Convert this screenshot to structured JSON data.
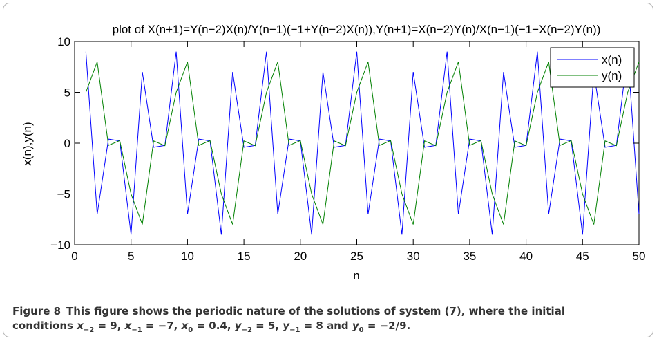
{
  "figure": {
    "label": "Figure 8",
    "caption_part1": "This figure shows the periodic nature of the solutions of system (7), where the initial",
    "caption_part2": "conditions",
    "initial_conditions": [
      {
        "var": "x",
        "sub": "−2",
        "value": "= 9,"
      },
      {
        "var": "x",
        "sub": "−1",
        "value": "= −7,"
      },
      {
        "var": "x",
        "sub": "0",
        "value": "= 0.4,"
      },
      {
        "var": "y",
        "sub": "−2",
        "value": "= 5,"
      },
      {
        "var": "y",
        "sub": "−1",
        "value": "= 8 and"
      },
      {
        "var": "y",
        "sub": "0",
        "value": "= −2/9."
      }
    ]
  },
  "chart_data": {
    "type": "line",
    "title": "plot of X(n+1)=Y(n−2)X(n)/Y(n−1)(−1+Y(n−2)X(n)),Y(n+1)=X(n−2)Y(n)/X(n−1)(−1−X(n−2)Y(n))",
    "xlabel": "n",
    "ylabel": "x(n),y(n)",
    "xlim": [
      0,
      50
    ],
    "ylim": [
      -10,
      10
    ],
    "xticks": [
      0,
      5,
      10,
      15,
      20,
      25,
      30,
      35,
      40,
      45,
      50
    ],
    "yticks": [
      -10,
      -5,
      0,
      5,
      10
    ],
    "xtick_labels": [
      "0",
      "5",
      "10",
      "15",
      "20",
      "25",
      "30",
      "35",
      "40",
      "45",
      "50"
    ],
    "ytick_labels": [
      "−10",
      "−5",
      "0",
      "5",
      "10"
    ],
    "grid": false,
    "legend_position": "top-right",
    "series": [
      {
        "name": "x(n)",
        "color": "#0000ff",
        "x": [
          1,
          2,
          3,
          4,
          5,
          6,
          7,
          8,
          9,
          10,
          11,
          12,
          13,
          14,
          15,
          16,
          17,
          18,
          19,
          20,
          21,
          22,
          23,
          24,
          25,
          26,
          27,
          28,
          29,
          30,
          31,
          32,
          33,
          34,
          35,
          36,
          37,
          38,
          39,
          40,
          41,
          42,
          43,
          44,
          45,
          46,
          47,
          48,
          49,
          50
        ],
        "values": [
          9,
          -7,
          0.4,
          0.222,
          -9,
          7,
          -0.4,
          -0.222,
          9,
          -7,
          0.4,
          0.222,
          -9,
          7,
          -0.4,
          -0.222,
          9,
          -7,
          0.4,
          0.222,
          -9,
          7,
          -0.4,
          -0.222,
          9,
          -7,
          0.4,
          0.222,
          -9,
          7,
          -0.4,
          -0.222,
          9,
          -7,
          0.4,
          0.222,
          -9,
          7,
          -0.4,
          -0.222,
          9,
          -7,
          0.4,
          0.222,
          -9,
          7,
          -0.4,
          -0.222,
          9,
          -7
        ]
      },
      {
        "name": "y(n)",
        "color": "#008000",
        "x": [
          1,
          2,
          3,
          4,
          5,
          6,
          7,
          8,
          9,
          10,
          11,
          12,
          13,
          14,
          15,
          16,
          17,
          18,
          19,
          20,
          21,
          22,
          23,
          24,
          25,
          26,
          27,
          28,
          29,
          30,
          31,
          32,
          33,
          34,
          35,
          36,
          37,
          38,
          39,
          40,
          41,
          42,
          43,
          44,
          45,
          46,
          47,
          48,
          49,
          50
        ],
        "values": [
          5,
          8,
          -0.222,
          0.25,
          -5,
          -8,
          0.222,
          -0.25,
          5,
          8,
          -0.222,
          0.25,
          -5,
          -8,
          0.222,
          -0.25,
          5,
          8,
          -0.222,
          0.25,
          -5,
          -8,
          0.222,
          -0.25,
          5,
          8,
          -0.222,
          0.25,
          -5,
          -8,
          0.222,
          -0.25,
          5,
          8,
          -0.222,
          0.25,
          -5,
          -8,
          0.222,
          -0.25,
          5,
          8,
          -0.222,
          0.25,
          -5,
          -8,
          0.222,
          -0.25,
          5,
          8
        ]
      }
    ]
  }
}
